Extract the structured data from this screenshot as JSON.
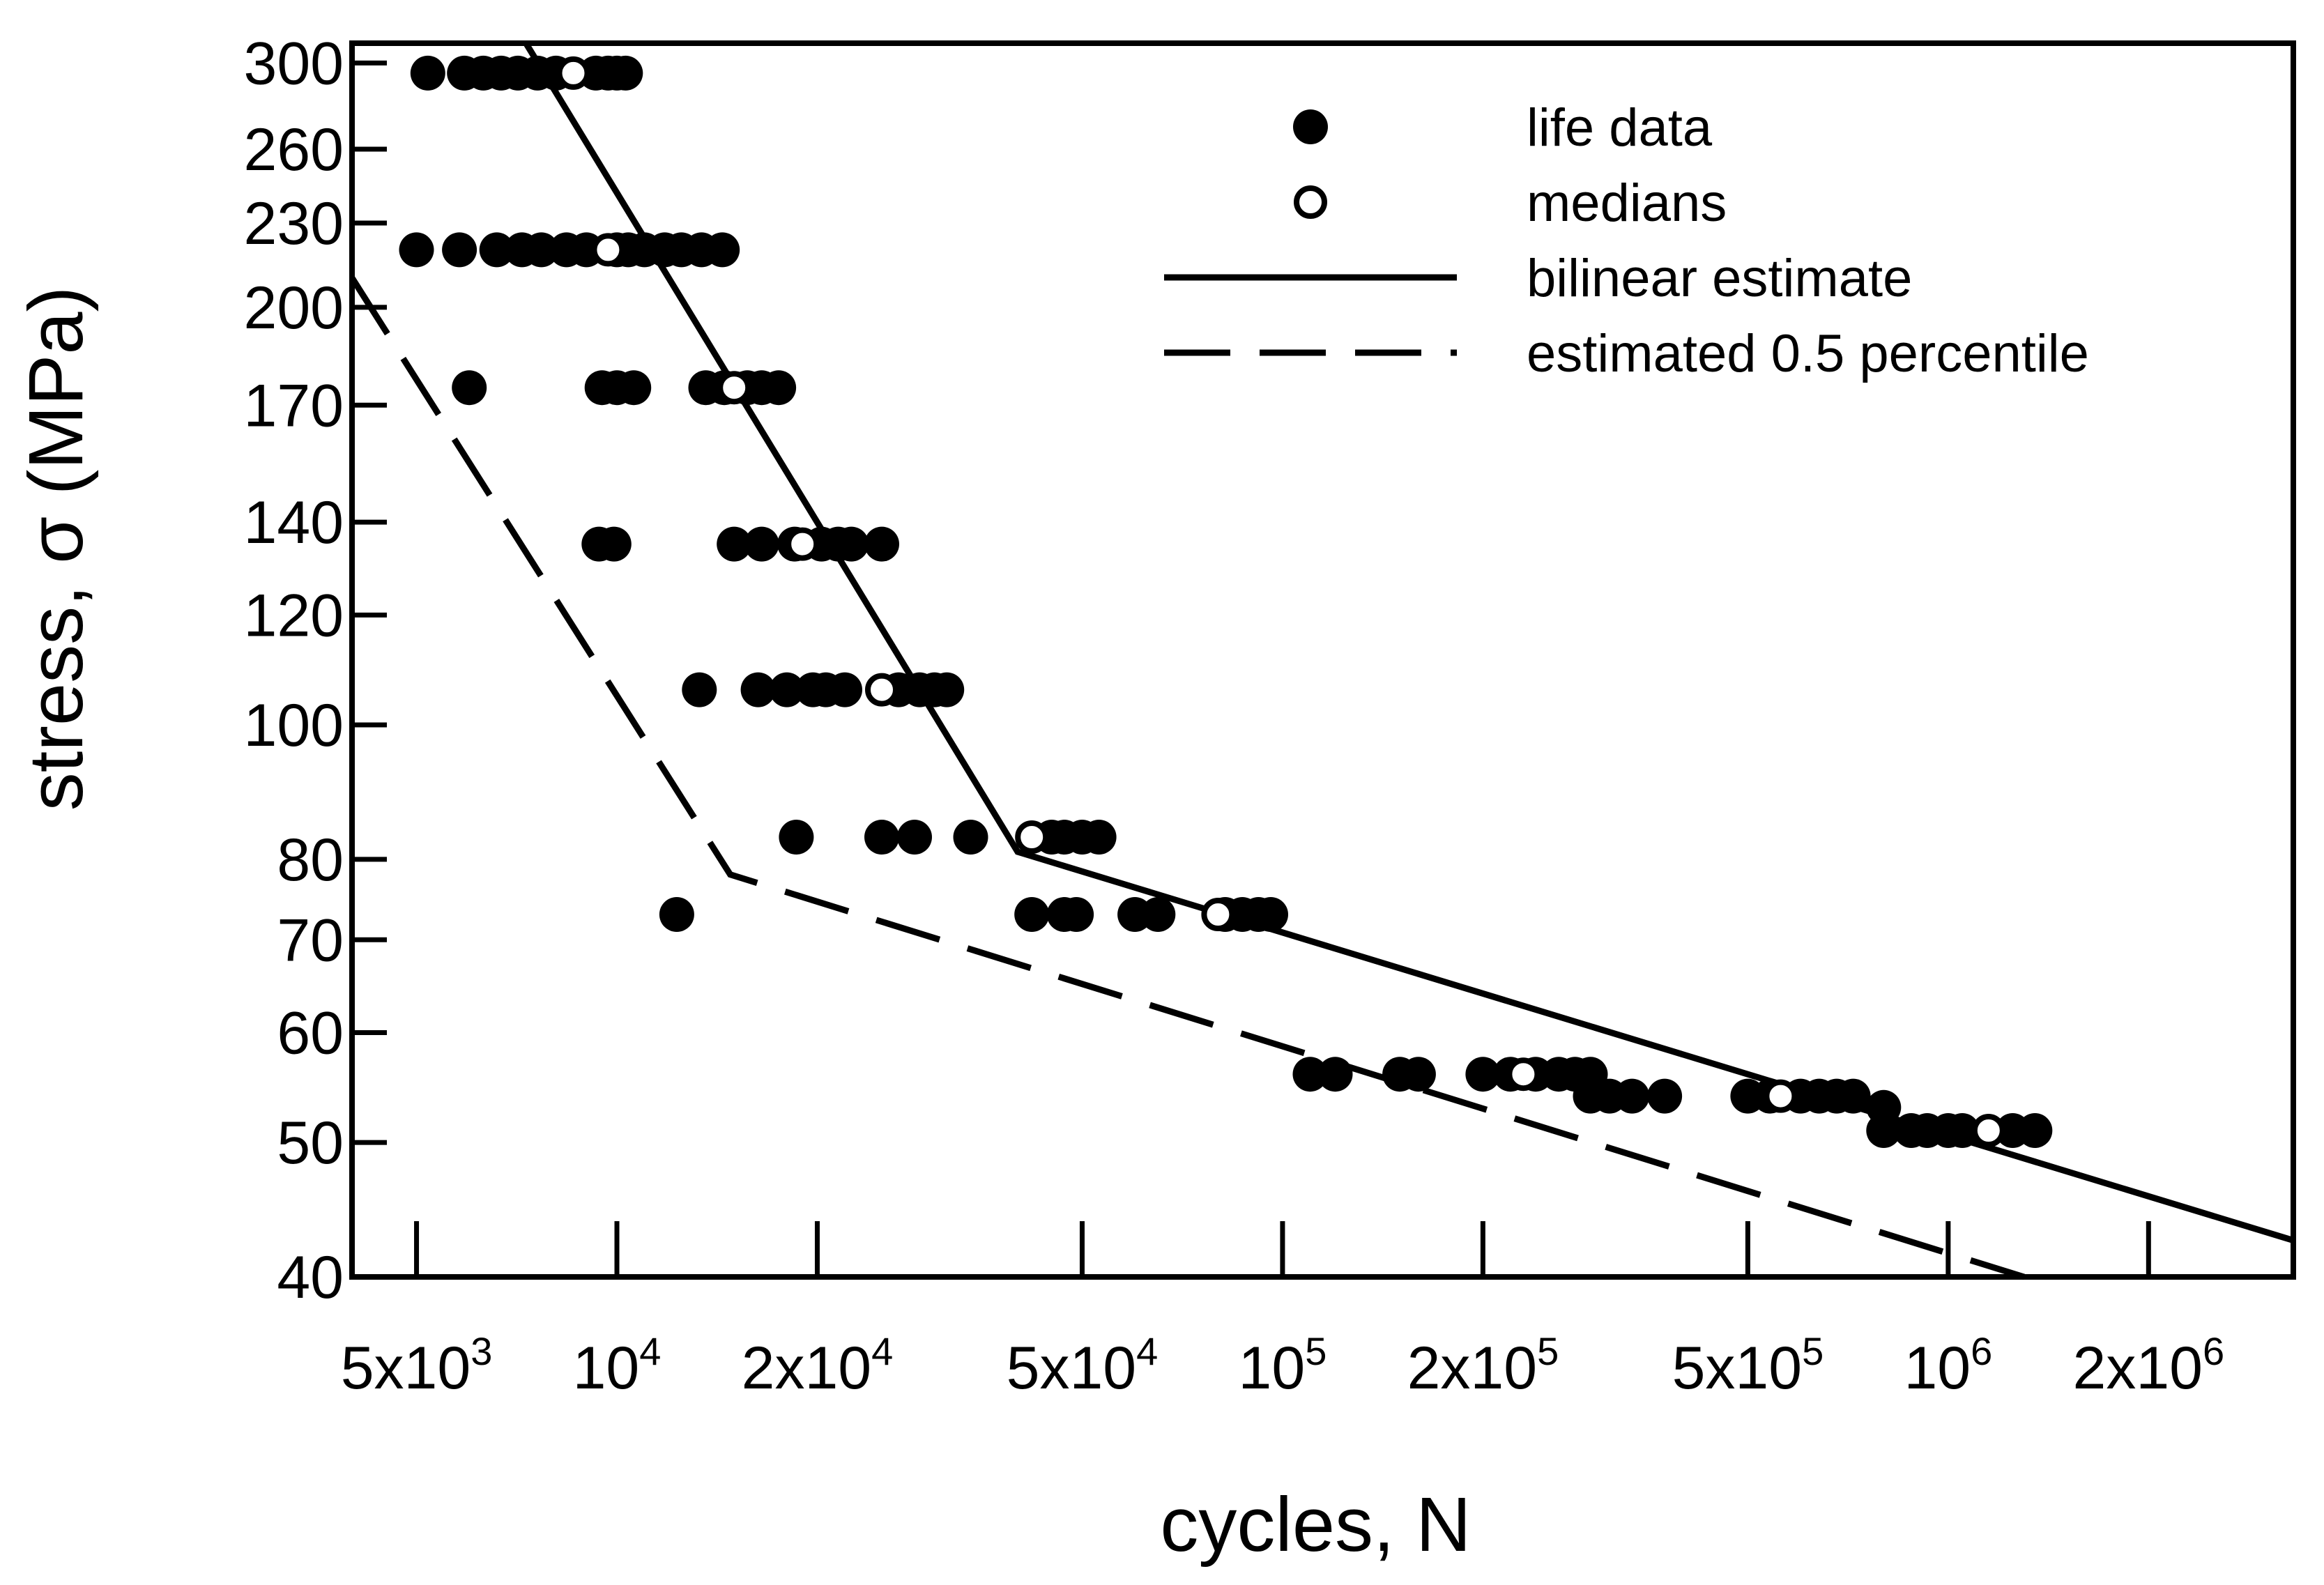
{
  "chart_data": {
    "type": "scatter",
    "title": "",
    "xlabel": "cycles, N",
    "ylabel": "stress, σ (MPa)",
    "x_scale": "log",
    "y_scale": "log",
    "xlim": [
      4000,
      3300000
    ],
    "ylim": [
      40,
      310
    ],
    "grid": false,
    "legend_position": "top-right",
    "x_ticks": [
      {
        "value": 5000,
        "base": "5x10",
        "exp": "3"
      },
      {
        "value": 10000,
        "base": "10",
        "exp": "4"
      },
      {
        "value": 20000,
        "base": "2x10",
        "exp": "4"
      },
      {
        "value": 50000,
        "base": "5x10",
        "exp": "4"
      },
      {
        "value": 100000,
        "base": "10",
        "exp": "5"
      },
      {
        "value": 200000,
        "base": "2x10",
        "exp": "5"
      },
      {
        "value": 500000,
        "base": "5x10",
        "exp": "5"
      },
      {
        "value": 1000000,
        "base": "10",
        "exp": "6"
      },
      {
        "value": 2000000,
        "base": "2x10",
        "exp": "6"
      }
    ],
    "y_ticks": [
      {
        "value": 40,
        "label": "40"
      },
      {
        "value": 50,
        "label": "50"
      },
      {
        "value": 60,
        "label": "60"
      },
      {
        "value": 70,
        "label": "70"
      },
      {
        "value": 80,
        "label": "80"
      },
      {
        "value": 100,
        "label": "100"
      },
      {
        "value": 120,
        "label": "120"
      },
      {
        "value": 140,
        "label": "140"
      },
      {
        "value": 170,
        "label": "170"
      },
      {
        "value": 200,
        "label": "200"
      },
      {
        "value": 230,
        "label": "230"
      },
      {
        "value": 260,
        "label": "260"
      },
      {
        "value": 300,
        "label": "300"
      }
    ],
    "series": [
      {
        "name": "life data",
        "kind": "filled-circle",
        "color": "#000000",
        "points": [
          [
            5200,
            295
          ],
          [
            5900,
            295
          ],
          [
            6300,
            295
          ],
          [
            6700,
            295
          ],
          [
            7100,
            295
          ],
          [
            7600,
            295
          ],
          [
            8100,
            295
          ],
          [
            9300,
            295
          ],
          [
            9700,
            295
          ],
          [
            10000,
            295
          ],
          [
            10300,
            295
          ],
          [
            5000,
            220
          ],
          [
            5800,
            220
          ],
          [
            6600,
            220
          ],
          [
            7200,
            220
          ],
          [
            7700,
            220
          ],
          [
            8400,
            220
          ],
          [
            9000,
            220
          ],
          [
            10000,
            220
          ],
          [
            10400,
            220
          ],
          [
            11000,
            220
          ],
          [
            11800,
            220
          ],
          [
            12500,
            220
          ],
          [
            13400,
            220
          ],
          [
            14400,
            220
          ],
          [
            6000,
            175
          ],
          [
            9500,
            175
          ],
          [
            10000,
            175
          ],
          [
            10600,
            175
          ],
          [
            13600,
            175
          ],
          [
            14500,
            175
          ],
          [
            15700,
            175
          ],
          [
            16500,
            175
          ],
          [
            17500,
            175
          ],
          [
            9400,
            135
          ],
          [
            9900,
            135
          ],
          [
            15000,
            135
          ],
          [
            16500,
            135
          ],
          [
            18500,
            135
          ],
          [
            20300,
            135
          ],
          [
            21500,
            135
          ],
          [
            22500,
            135
          ],
          [
            25000,
            135
          ],
          [
            13300,
            106
          ],
          [
            16300,
            106
          ],
          [
            18000,
            106
          ],
          [
            19700,
            106
          ],
          [
            20600,
            106
          ],
          [
            22000,
            106
          ],
          [
            26500,
            106
          ],
          [
            28500,
            106
          ],
          [
            30000,
            106
          ],
          [
            31300,
            106
          ],
          [
            18600,
            83
          ],
          [
            25000,
            83
          ],
          [
            28000,
            83
          ],
          [
            34000,
            83
          ],
          [
            45000,
            83
          ],
          [
            47000,
            83
          ],
          [
            50000,
            83
          ],
          [
            53000,
            83
          ],
          [
            12300,
            73
          ],
          [
            42000,
            73
          ],
          [
            47000,
            73
          ],
          [
            49000,
            73
          ],
          [
            60000,
            73
          ],
          [
            65000,
            73
          ],
          [
            82000,
            73
          ],
          [
            87000,
            73
          ],
          [
            92000,
            73
          ],
          [
            96000,
            73
          ],
          [
            110000,
            56
          ],
          [
            120000,
            56
          ],
          [
            150000,
            56
          ],
          [
            160000,
            56
          ],
          [
            200000,
            56
          ],
          [
            220000,
            56
          ],
          [
            240000,
            56
          ],
          [
            260000,
            56
          ],
          [
            275000,
            56
          ],
          [
            290000,
            56
          ],
          [
            290000,
            54
          ],
          [
            310000,
            54
          ],
          [
            335000,
            54
          ],
          [
            375000,
            54
          ],
          [
            500000,
            54
          ],
          [
            540000,
            54
          ],
          [
            600000,
            54
          ],
          [
            640000,
            54
          ],
          [
            680000,
            54
          ],
          [
            720000,
            54
          ],
          [
            800000,
            53
          ],
          [
            800000,
            51
          ],
          [
            880000,
            51
          ],
          [
            930000,
            51
          ],
          [
            1000000,
            51
          ],
          [
            1050000,
            51
          ],
          [
            1250000,
            51
          ],
          [
            1350000,
            51
          ]
        ]
      },
      {
        "name": "medians",
        "kind": "open-circle",
        "color": "#000000",
        "points": [
          [
            8600,
            295
          ],
          [
            9700,
            220
          ],
          [
            15000,
            175
          ],
          [
            19000,
            135
          ],
          [
            25000,
            106
          ],
          [
            42000,
            83
          ],
          [
            80000,
            73
          ],
          [
            230000,
            56
          ],
          [
            560000,
            54
          ],
          [
            1150000,
            51
          ]
        ]
      },
      {
        "name": "bilinear estimate",
        "kind": "solid-line",
        "color": "#000000",
        "points": [
          [
            7300,
            310
          ],
          [
            40000,
            81
          ],
          [
            3300000,
            42.5
          ]
        ]
      },
      {
        "name": "estimated 0.5 percentile",
        "kind": "dashed-line",
        "color": "#000000",
        "points": [
          [
            4000,
            210
          ],
          [
            14800,
            78
          ],
          [
            1300000,
            40
          ]
        ]
      }
    ]
  }
}
